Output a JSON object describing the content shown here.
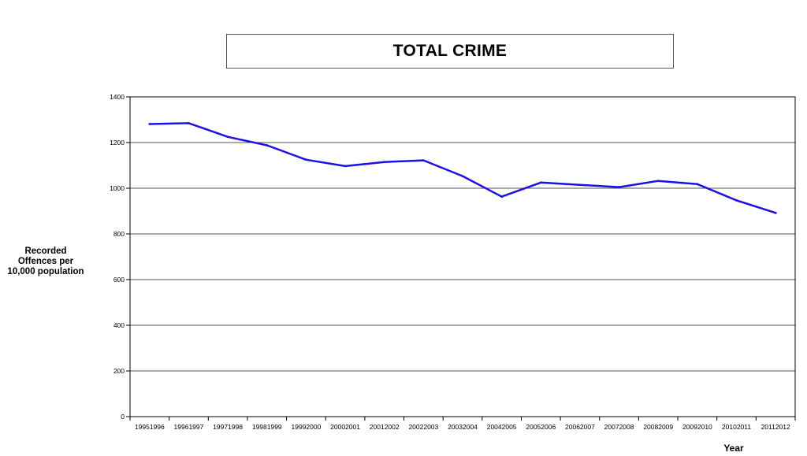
{
  "chart_data": {
    "type": "line",
    "title": "TOTAL CRIME",
    "xlabel": "Year",
    "ylabel": "Recorded Offences per 10,000 population",
    "ylim": [
      0,
      1400
    ],
    "yticks": [
      0,
      200,
      400,
      600,
      800,
      1000,
      1200,
      1400
    ],
    "grid": true,
    "categories": [
      "19951996",
      "19961997",
      "19971998",
      "19981999",
      "19992000",
      "20002001",
      "20012002",
      "20022003",
      "20032004",
      "20042005",
      "20052006",
      "20062007",
      "20072008",
      "20082009",
      "20092010",
      "20102011",
      "20112012"
    ],
    "series": [
      {
        "color": "#1c10e8",
        "values": [
          1281,
          1285,
          1225,
          1188,
          1125,
          1097,
          1115,
          1122,
          1053,
          963,
          1025,
          1015,
          1005,
          1032,
          1018,
          947,
          892
        ]
      }
    ]
  }
}
